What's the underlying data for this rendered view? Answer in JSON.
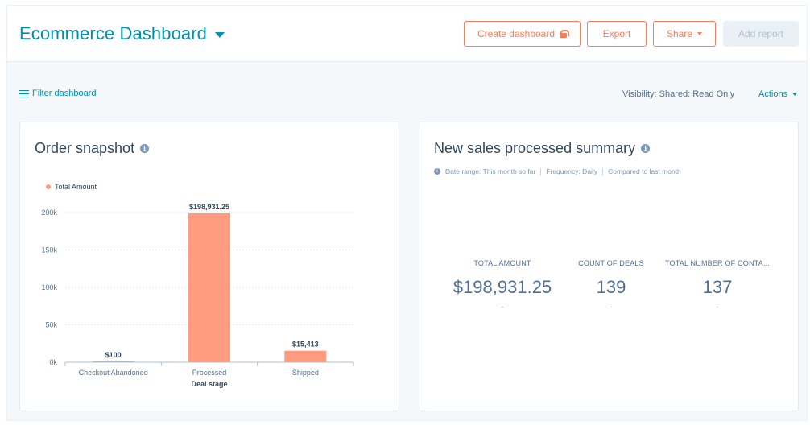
{
  "header": {
    "title": "Ecommerce Dashboard",
    "create_label": "Create dashboard",
    "export_label": "Export",
    "share_label": "Share",
    "add_report_label": "Add report"
  },
  "toolbar": {
    "filter_label": "Filter dashboard",
    "visibility_text": "Visibility:  Shared: Read Only",
    "actions_label": "Actions"
  },
  "order_card": {
    "title": "Order snapshot",
    "legend": "Total Amount",
    "x_axis_title": "Deal stage"
  },
  "chart_data": {
    "type": "bar",
    "categories": [
      "Checkout Abandoned",
      "Processed",
      "Shipped"
    ],
    "series": [
      {
        "name": "Total Amount",
        "values": [
          100,
          198931.25,
          15413
        ]
      }
    ],
    "value_labels": [
      "$100",
      "$198,931.25",
      "$15,413"
    ],
    "y_ticks": [
      0,
      50000,
      100000,
      150000,
      200000
    ],
    "y_tick_labels": [
      "0k",
      "50k",
      "100k",
      "150k",
      "200k"
    ],
    "ylim": [
      0,
      200000
    ],
    "xlabel": "Deal stage",
    "ylabel": "",
    "grid": true,
    "legend_position": "top-left",
    "bar_color": "#ff9b7e"
  },
  "sales_card": {
    "title": "New sales processed summary",
    "date_range": "Date range: This month so far",
    "frequency": "Frequency: Daily",
    "compared": "Compared to last month",
    "kpis": [
      {
        "label": "TOTAL AMOUNT",
        "value": "$198,931.25",
        "delta": "-"
      },
      {
        "label": "COUNT OF DEALS",
        "value": "139",
        "delta": "-"
      },
      {
        "label": "TOTAL NUMBER OF CONTA...",
        "value": "137",
        "delta": "-"
      }
    ]
  },
  "colors": {
    "accent": "#0091ae",
    "button": "#ff7a59",
    "bar": "#ff9b7e"
  }
}
